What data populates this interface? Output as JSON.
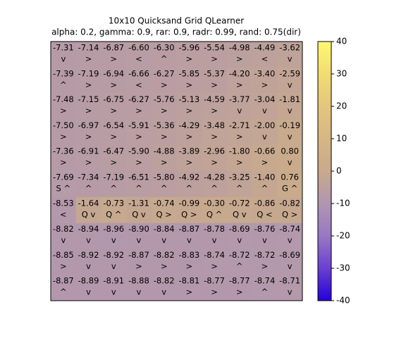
{
  "chart_data": {
    "type": "heatmap",
    "title": "10x10 Quicksand Grid QLearner",
    "subtitle": "alpha: 0.2, gamma: 0.9, rar: 0.9, radr: 0.99, rand: 0.75(dir)",
    "values": [
      [
        -7.31,
        -7.14,
        -6.87,
        -6.6,
        -6.3,
        -5.96,
        -5.54,
        -4.98,
        -4.49,
        -3.62
      ],
      [
        -7.39,
        -7.19,
        -6.94,
        -6.66,
        -6.27,
        -5.85,
        -5.37,
        -4.2,
        -3.4,
        -2.59
      ],
      [
        -7.48,
        -7.15,
        -6.75,
        -6.27,
        -5.76,
        -5.13,
        -4.59,
        -3.77,
        -3.04,
        -1.81
      ],
      [
        -7.5,
        -6.97,
        -6.54,
        -5.91,
        -5.36,
        -4.29,
        -3.48,
        -2.71,
        -2.0,
        -0.19
      ],
      [
        -7.36,
        -6.91,
        -6.47,
        -5.9,
        -4.88,
        -3.89,
        -2.96,
        -1.8,
        -0.66,
        0.8
      ],
      [
        -7.69,
        -7.34,
        -7.19,
        -6.51,
        -5.8,
        -4.92,
        -4.28,
        -3.25,
        -1.4,
        0.76
      ],
      [
        -8.53,
        -1.64,
        -0.73,
        -1.31,
        -0.74,
        -0.99,
        -0.3,
        -0.72,
        -0.86,
        -0.82
      ],
      [
        -8.82,
        -8.94,
        -8.96,
        -8.9,
        -8.84,
        -8.87,
        -8.78,
        -8.69,
        -8.76,
        -8.74
      ],
      [
        -8.85,
        -8.92,
        -8.92,
        -8.87,
        -8.82,
        -8.83,
        -8.74,
        -8.72,
        -8.72,
        -8.69
      ],
      [
        -8.87,
        -8.89,
        -8.91,
        -8.88,
        -8.82,
        -8.81,
        -8.77,
        -8.77,
        -8.74,
        -8.71
      ]
    ],
    "value_labels": [
      [
        "-7.31",
        "-7.14",
        "-6.87",
        "-6.60",
        "-6.30",
        "-5.96",
        "-5.54",
        "-4.98",
        "-4.49",
        "-3.62"
      ],
      [
        "-7.39",
        "-7.19",
        "-6.94",
        "-6.66",
        "-6.27",
        "-5.85",
        "-5.37",
        "-4.20",
        "-3.40",
        "-2.59"
      ],
      [
        "-7.48",
        "-7.15",
        "-6.75",
        "-6.27",
        "-5.76",
        "-5.13",
        "-4.59",
        "-3.77",
        "-3.04",
        "-1.81"
      ],
      [
        "-7.50",
        "-6.97",
        "-6.54",
        "-5.91",
        "-5.36",
        "-4.29",
        "-3.48",
        "-2.71",
        "-2.00",
        "-0.19"
      ],
      [
        "-7.36",
        "-6.91",
        "-6.47",
        "-5.90",
        "-4.88",
        "-3.89",
        "-2.96",
        "-1.80",
        "-0.66",
        "0.80"
      ],
      [
        "-7.69",
        "-7.34",
        "-7.19",
        "-6.51",
        "-5.80",
        "-4.92",
        "-4.28",
        "-3.25",
        "-1.40",
        "0.76"
      ],
      [
        "-8.53",
        "-1.64",
        "-0.73",
        "-1.31",
        "-0.74",
        "-0.99",
        "-0.30",
        "-0.72",
        "-0.86",
        "-0.82"
      ],
      [
        "-8.82",
        "-8.94",
        "-8.96",
        "-8.90",
        "-8.84",
        "-8.87",
        "-8.78",
        "-8.69",
        "-8.76",
        "-8.74"
      ],
      [
        "-8.85",
        "-8.92",
        "-8.92",
        "-8.87",
        "-8.82",
        "-8.83",
        "-8.74",
        "-8.72",
        "-8.72",
        "-8.69"
      ],
      [
        "-8.87",
        "-8.89",
        "-8.91",
        "-8.88",
        "-8.82",
        "-8.81",
        "-8.77",
        "-8.77",
        "-8.74",
        "-8.71"
      ]
    ],
    "cell_labels": [
      [
        "v",
        ">",
        ">",
        "<",
        "^",
        ">",
        ">",
        ">",
        "<",
        "v"
      ],
      [
        "^",
        ">",
        ">",
        "<",
        ">",
        ">",
        ">",
        ">",
        ">",
        "v"
      ],
      [
        ">",
        ">",
        ">",
        ">",
        ">",
        ">",
        ">",
        "v",
        "v",
        "v"
      ],
      [
        ">",
        ">",
        ">",
        ">",
        ">",
        ">",
        ">",
        ">",
        "v",
        "v"
      ],
      [
        ">",
        ">",
        ">",
        ">",
        ">",
        ">",
        ">",
        ">",
        ">",
        "v"
      ],
      [
        "S ^",
        "^",
        "^",
        "^",
        "^",
        "^",
        "^",
        "^",
        "^",
        "G ^"
      ],
      [
        "<",
        "Q v",
        "Q ^",
        "Q v",
        "Q >",
        "Q >",
        "Q ^",
        "Q v",
        "Q <",
        "Q >"
      ],
      [
        "v",
        "v",
        "v",
        "v",
        "v",
        "v",
        "v",
        "v",
        "v",
        "v"
      ],
      [
        ">",
        "v",
        "v",
        ">",
        ">",
        ">",
        ">",
        "^",
        ">",
        "v"
      ],
      [
        "^",
        "v",
        "v",
        "v",
        "v",
        ">",
        ">",
        ">",
        "^",
        "v"
      ]
    ],
    "clim": [
      -40,
      40
    ],
    "cticks": [
      -40,
      -30,
      -20,
      -10,
      0,
      10,
      20,
      30,
      40
    ],
    "colormap": [
      "#2400d8",
      "#6a40d0",
      "#9878c4",
      "#b096b0",
      "#c8aa8c",
      "#d6b684",
      "#e4c67c",
      "#f2dc72",
      "#fff870"
    ]
  }
}
